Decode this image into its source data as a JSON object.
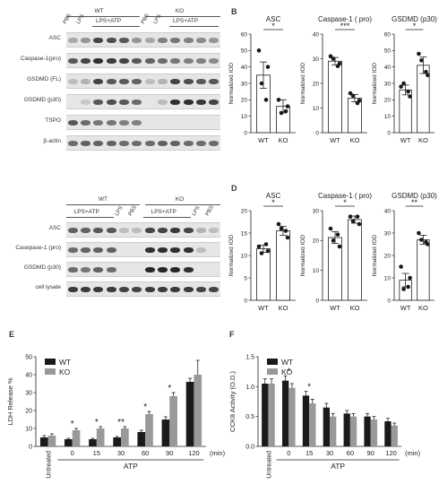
{
  "panels": {
    "A": {
      "letter": "A",
      "groups": [
        {
          "label": "WT"
        },
        {
          "label": "KO"
        }
      ],
      "subgroup": "LPS+ATP",
      "lanes_wt": [
        "PBS",
        "LPS"
      ],
      "lanes_ko": [
        "PBS",
        "LPS"
      ],
      "rows": [
        {
          "label": "ASC",
          "intensity": [
            0.2,
            0.3,
            0.7,
            0.65,
            0.6,
            0.3,
            0.2,
            0.4,
            0.45,
            0.4,
            0.35,
            0.3
          ]
        },
        {
          "label": "Caspase-1(pro)",
          "intensity": [
            0.6,
            0.7,
            0.8,
            0.75,
            0.7,
            0.6,
            0.55,
            0.5,
            0.45,
            0.4,
            0.4,
            0.35
          ]
        },
        {
          "label": "GSDMD (FL)",
          "intensity": [
            0.1,
            0.15,
            0.7,
            0.6,
            0.6,
            0.55,
            0.1,
            0.15,
            0.7,
            0.65,
            0.6,
            0.6
          ]
        },
        {
          "label": "GSDMD (p30)",
          "intensity": [
            0.0,
            0.05,
            0.6,
            0.65,
            0.6,
            0.5,
            0.0,
            0.1,
            0.8,
            0.8,
            0.75,
            0.7
          ]
        },
        {
          "label": "TSPO",
          "intensity": [
            0.6,
            0.5,
            0.45,
            0.45,
            0.4,
            0.4,
            0.0,
            0.0,
            0.0,
            0.0,
            0.0,
            0.0
          ]
        },
        {
          "label": "β-actin",
          "intensity": [
            0.5,
            0.55,
            0.55,
            0.55,
            0.5,
            0.5,
            0.5,
            0.55,
            0.55,
            0.5,
            0.5,
            0.5
          ]
        }
      ]
    },
    "C": {
      "letter": "C",
      "groups": [
        {
          "label": "WT"
        },
        {
          "label": "KO"
        }
      ],
      "subgroup": "LPS+ATP",
      "lanes_end": [
        "LPS",
        "PBS"
      ],
      "rows": [
        {
          "label": "ASC",
          "intensity": [
            0.55,
            0.55,
            0.6,
            0.6,
            0.1,
            0.1,
            0.7,
            0.7,
            0.75,
            0.7,
            0.15,
            0.1
          ]
        },
        {
          "label": "Casepase-1 (pro)",
          "intensity": [
            0.5,
            0.55,
            0.55,
            0.55,
            0.0,
            0.0,
            0.8,
            0.8,
            0.8,
            0.8,
            0.1,
            0.0
          ]
        },
        {
          "label": "GSDMD (p30)",
          "intensity": [
            0.5,
            0.45,
            0.55,
            0.5,
            0.0,
            0.0,
            0.85,
            0.85,
            0.85,
            0.8,
            0.0,
            0.0
          ]
        },
        {
          "label": "cell lysate",
          "intensity": [
            0.75,
            0.75,
            0.75,
            0.75,
            0.7,
            0.7,
            0.75,
            0.75,
            0.75,
            0.75,
            0.7,
            0.7
          ]
        }
      ]
    },
    "B": {
      "letter": "B"
    },
    "D": {
      "letter": "D"
    },
    "E": {
      "letter": "E"
    },
    "F": {
      "letter": "F"
    }
  },
  "chart_data": [
    {
      "id": "B-ASC",
      "type": "bar",
      "title": "ASC",
      "ylabel": "Normalized IOD",
      "categories": [
        "WT",
        "KO"
      ],
      "values": [
        35,
        16
      ],
      "errors": [
        8,
        4
      ],
      "points": [
        [
          50,
          40,
          30,
          20
        ],
        [
          20,
          16,
          12,
          13
        ]
      ],
      "ylim": [
        0,
        60
      ],
      "yticks": [
        0,
        10,
        20,
        30,
        40,
        50,
        60
      ],
      "significance": "*"
    },
    {
      "id": "B-Casp",
      "type": "bar",
      "title": "Caspase-1 ( pro)",
      "ylabel": "Normalized IOD",
      "categories": [
        "WT",
        "KO"
      ],
      "values": [
        29,
        14
      ],
      "errors": [
        1.5,
        1.5
      ],
      "points": [
        [
          31,
          28,
          30,
          27
        ],
        [
          16,
          13,
          15,
          12
        ]
      ],
      "ylim": [
        0,
        40
      ],
      "yticks": [
        0,
        10,
        20,
        30,
        40
      ],
      "significance": "***"
    },
    {
      "id": "B-GSDMD",
      "type": "bar",
      "title": "GSDMD (p30)",
      "ylabel": "Normalized IOD",
      "categories": [
        "WT",
        "KO"
      ],
      "values": [
        26,
        41
      ],
      "errors": [
        3,
        5
      ],
      "points": [
        [
          28,
          22,
          30,
          25
        ],
        [
          48,
          35,
          44,
          37
        ]
      ],
      "ylim": [
        0,
        60
      ],
      "yticks": [
        0,
        10,
        20,
        30,
        40,
        50,
        60
      ],
      "significance": "*"
    },
    {
      "id": "D-ASC",
      "type": "bar",
      "title": "ASC",
      "ylabel": "Normalized IOD",
      "categories": [
        "WT",
        "KO"
      ],
      "values": [
        11.5,
        15.5
      ],
      "errors": [
        0.8,
        1
      ],
      "points": [
        [
          12,
          11,
          10.5,
          12.5
        ],
        [
          17,
          14,
          16,
          15.5
        ]
      ],
      "ylim": [
        0,
        20
      ],
      "yticks": [
        0,
        5,
        10,
        15,
        20
      ],
      "significance": "*"
    },
    {
      "id": "D-Casp",
      "type": "bar",
      "title": "Caspase-1 ( pro)",
      "ylabel": "Normalized IOD",
      "categories": [
        "WT",
        "KO"
      ],
      "values": [
        21,
        27
      ],
      "errors": [
        2,
        1.2
      ],
      "points": [
        [
          24,
          18,
          20,
          22
        ],
        [
          28,
          25.5,
          26.5,
          28
        ]
      ],
      "ylim": [
        0,
        30
      ],
      "yticks": [
        0,
        10,
        20,
        30
      ],
      "significance": "*"
    },
    {
      "id": "D-GSDMD",
      "type": "bar",
      "title": "GSDMD (p30)",
      "ylabel": "Normalized IOD",
      "categories": [
        "WT",
        "KO"
      ],
      "values": [
        9,
        27
      ],
      "errors": [
        3,
        2
      ],
      "points": [
        [
          15,
          10,
          5,
          6
        ],
        [
          30,
          25,
          27,
          26
        ]
      ],
      "ylim": [
        0,
        40
      ],
      "yticks": [
        0,
        10,
        20,
        30,
        40
      ],
      "significance": "**"
    },
    {
      "id": "E",
      "type": "bar",
      "title": "",
      "ylabel": "LDH Release %",
      "xlabel": "ATP",
      "xunit": "(min)",
      "lead_category": "Untreated",
      "categories": [
        "Untreated",
        "0",
        "15",
        "30",
        "60",
        "90",
        "120"
      ],
      "series": [
        {
          "name": "WT",
          "color": "#1a1a1a",
          "values": [
            5,
            4,
            4,
            5,
            8,
            15,
            36
          ],
          "errors": [
            1,
            0.5,
            0.5,
            0.5,
            1,
            1.5,
            2
          ]
        },
        {
          "name": "KO",
          "color": "#999999",
          "values": [
            6,
            9,
            10,
            10,
            18,
            28,
            40
          ],
          "errors": [
            1,
            1,
            1,
            1,
            1.5,
            2,
            8
          ]
        }
      ],
      "ylim": [
        0,
        50
      ],
      "yticks": [
        0,
        10,
        20,
        30,
        40,
        50
      ],
      "significance": [
        "",
        "*",
        "*",
        "**",
        "*",
        "*",
        ""
      ]
    },
    {
      "id": "F",
      "type": "bar",
      "title": "",
      "ylabel": "CCK8 Activity (O.D.)",
      "xlabel": "ATP",
      "xunit": "(min)",
      "lead_category": "Untreated",
      "categories": [
        "Untreated",
        "0",
        "15",
        "30",
        "60",
        "90",
        "120"
      ],
      "series": [
        {
          "name": "WT",
          "color": "#1a1a1a",
          "values": [
            1.05,
            1.1,
            0.85,
            0.65,
            0.55,
            0.5,
            0.42
          ],
          "errors": [
            0.08,
            0.08,
            0.07,
            0.07,
            0.05,
            0.05,
            0.05
          ]
        },
        {
          "name": "KO",
          "color": "#999999",
          "values": [
            1.05,
            0.98,
            0.72,
            0.5,
            0.5,
            0.45,
            0.35
          ],
          "errors": [
            0.08,
            0.07,
            0.07,
            0.05,
            0.05,
            0.05,
            0.04
          ]
        }
      ],
      "ylim": [
        0,
        1.5
      ],
      "yticks": [
        0.0,
        0.5,
        1.0,
        1.5
      ],
      "tickfmt": 1,
      "significance": [
        "",
        "*",
        "*",
        "",
        "",
        "",
        ""
      ]
    }
  ]
}
